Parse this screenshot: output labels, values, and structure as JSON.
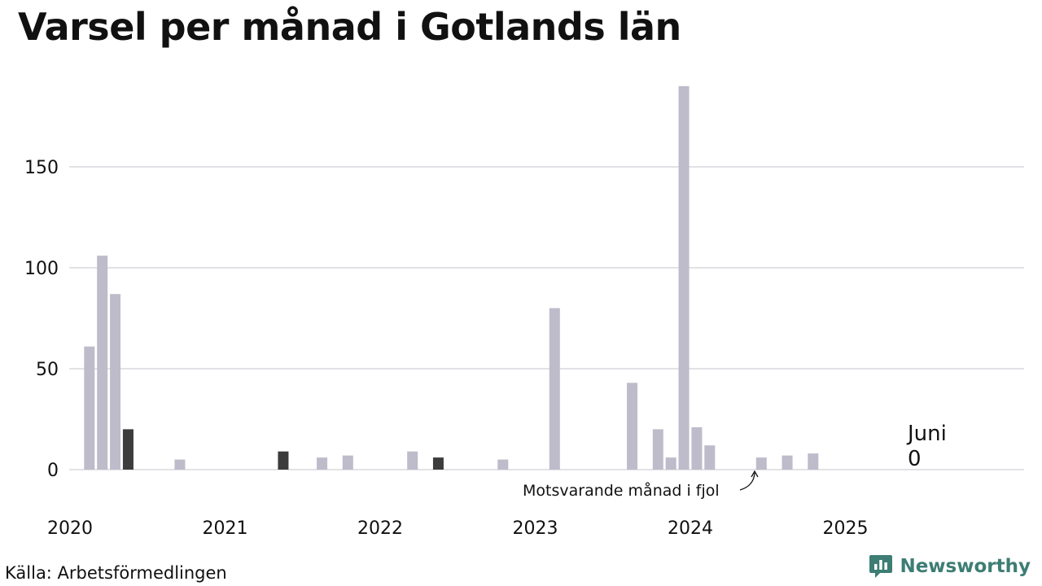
{
  "title": "Varsel per månad i Gotlands län",
  "source": "Källa: Arbetsförmedlingen",
  "brand": {
    "name": "Newsworthy",
    "icon": "newsworthy-logo-icon",
    "color": "#3d7d74"
  },
  "chart_data": {
    "type": "bar",
    "title": "Varsel per månad i Gotlands län",
    "ylim": [
      0,
      190
    ],
    "yticks": [
      0,
      50,
      100,
      150
    ],
    "grid": true,
    "x_labels": [
      "2020",
      "2021",
      "2022",
      "2023",
      "2024",
      "2025"
    ],
    "colors": {
      "bar": "#bebbca",
      "highlight": "#3c3c3c",
      "grid": "#e2e2e6"
    },
    "bars": [
      {
        "date": "2020-01",
        "value": 0
      },
      {
        "date": "2020-02",
        "value": 61
      },
      {
        "date": "2020-03",
        "value": 106
      },
      {
        "date": "2020-04",
        "value": 87
      },
      {
        "date": "2020-05",
        "value": 20,
        "highlight": true
      },
      {
        "date": "2020-09",
        "value": 5
      },
      {
        "date": "2021-05",
        "value": 9,
        "highlight": true
      },
      {
        "date": "2021-08",
        "value": 6
      },
      {
        "date": "2021-10",
        "value": 7
      },
      {
        "date": "2022-03",
        "value": 9
      },
      {
        "date": "2022-05",
        "value": 6,
        "highlight": true
      },
      {
        "date": "2022-10",
        "value": 5
      },
      {
        "date": "2023-02",
        "value": 80
      },
      {
        "date": "2023-08",
        "value": 43
      },
      {
        "date": "2023-10",
        "value": 20
      },
      {
        "date": "2023-11",
        "value": 6
      },
      {
        "date": "2023-12",
        "value": 190
      },
      {
        "date": "2024-01",
        "value": 21
      },
      {
        "date": "2024-02",
        "value": 12
      },
      {
        "date": "2024-06",
        "value": 6
      },
      {
        "date": "2024-08",
        "value": 7
      },
      {
        "date": "2024-10",
        "value": 8
      }
    ],
    "annotation": "Motsvarande månad i fjol",
    "last_value": {
      "month": "Juni",
      "value": "0"
    }
  }
}
